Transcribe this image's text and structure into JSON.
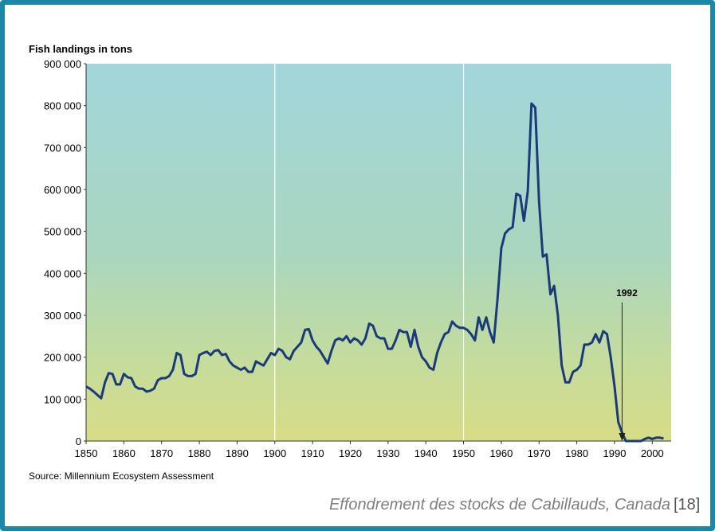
{
  "chart_data": {
    "type": "line",
    "y_label": "Fish landings in tons",
    "source": "Source: Millennium Ecosystem Assessment",
    "caption": "Effondrement des stocks de Cabillauds, Canada",
    "caption_ref": "[18]",
    "annotation": {
      "text": "1992",
      "x": 1992
    },
    "xlim": [
      1850,
      2005
    ],
    "ylim": [
      0,
      900000
    ],
    "xticks": [
      1850,
      1860,
      1870,
      1880,
      1890,
      1900,
      1910,
      1920,
      1930,
      1940,
      1950,
      1960,
      1970,
      1980,
      1990,
      2000
    ],
    "yticks": [
      {
        "value": 0,
        "label": "0"
      },
      {
        "value": 100000,
        "label": "100 000"
      },
      {
        "value": 200000,
        "label": "200 000"
      },
      {
        "value": 300000,
        "label": "300 000"
      },
      {
        "value": 400000,
        "label": "400 000"
      },
      {
        "value": 500000,
        "label": "500 000"
      },
      {
        "value": 600000,
        "label": "600 000"
      },
      {
        "value": 700000,
        "label": "700 000"
      },
      {
        "value": 800000,
        "label": "800 000"
      },
      {
        "value": 900000,
        "label": "900 000"
      }
    ],
    "grid_x": [
      1900,
      1950
    ],
    "color": "#1a3a7a",
    "x": [
      1850,
      1851,
      1852,
      1853,
      1854,
      1855,
      1856,
      1857,
      1858,
      1859,
      1860,
      1861,
      1862,
      1863,
      1864,
      1865,
      1866,
      1867,
      1868,
      1869,
      1870,
      1871,
      1872,
      1873,
      1874,
      1875,
      1876,
      1877,
      1878,
      1879,
      1880,
      1881,
      1882,
      1883,
      1884,
      1885,
      1886,
      1887,
      1888,
      1889,
      1890,
      1891,
      1892,
      1893,
      1894,
      1895,
      1896,
      1897,
      1898,
      1899,
      1900,
      1901,
      1902,
      1903,
      1904,
      1905,
      1906,
      1907,
      1908,
      1909,
      1910,
      1911,
      1912,
      1913,
      1914,
      1915,
      1916,
      1917,
      1918,
      1919,
      1920,
      1921,
      1922,
      1923,
      1924,
      1925,
      1926,
      1927,
      1928,
      1929,
      1930,
      1931,
      1932,
      1933,
      1934,
      1935,
      1936,
      1937,
      1938,
      1939,
      1940,
      1941,
      1942,
      1943,
      1944,
      1945,
      1946,
      1947,
      1948,
      1949,
      1950,
      1951,
      1952,
      1953,
      1954,
      1955,
      1956,
      1957,
      1958,
      1959,
      1960,
      1961,
      1962,
      1963,
      1964,
      1965,
      1966,
      1967,
      1968,
      1969,
      1970,
      1971,
      1972,
      1973,
      1974,
      1975,
      1976,
      1977,
      1978,
      1979,
      1980,
      1981,
      1982,
      1983,
      1984,
      1985,
      1986,
      1987,
      1988,
      1989,
      1990,
      1991,
      1992,
      1993,
      1994,
      1995,
      1996,
      1997,
      1998,
      1999,
      2000,
      2001,
      2002,
      2003
    ],
    "values": [
      130000,
      125000,
      118000,
      110000,
      102000,
      140000,
      162000,
      160000,
      135000,
      135000,
      160000,
      152000,
      150000,
      130000,
      125000,
      125000,
      118000,
      120000,
      125000,
      145000,
      150000,
      150000,
      155000,
      170000,
      210000,
      205000,
      160000,
      155000,
      155000,
      160000,
      205000,
      210000,
      213000,
      205000,
      215000,
      217000,
      205000,
      208000,
      190000,
      180000,
      175000,
      170000,
      175000,
      165000,
      165000,
      190000,
      185000,
      180000,
      195000,
      210000,
      205000,
      220000,
      215000,
      200000,
      195000,
      215000,
      225000,
      235000,
      265000,
      267000,
      240000,
      225000,
      215000,
      200000,
      185000,
      215000,
      240000,
      245000,
      240000,
      250000,
      235000,
      245000,
      240000,
      230000,
      245000,
      280000,
      275000,
      250000,
      245000,
      245000,
      220000,
      220000,
      240000,
      265000,
      260000,
      260000,
      225000,
      265000,
      225000,
      200000,
      190000,
      175000,
      170000,
      210000,
      235000,
      255000,
      260000,
      285000,
      275000,
      270000,
      270000,
      265000,
      255000,
      240000,
      295000,
      265000,
      295000,
      260000,
      235000,
      340000,
      460000,
      495000,
      505000,
      510000,
      590000,
      585000,
      525000,
      595000,
      805000,
      795000,
      570000,
      440000,
      445000,
      350000,
      370000,
      300000,
      180000,
      140000,
      140000,
      165000,
      170000,
      180000,
      230000,
      230000,
      235000,
      255000,
      235000,
      262000,
      255000,
      200000,
      130000,
      45000,
      20000,
      0,
      0,
      0,
      0,
      0,
      5000,
      8000,
      5000,
      8000,
      8000,
      6000
    ]
  }
}
